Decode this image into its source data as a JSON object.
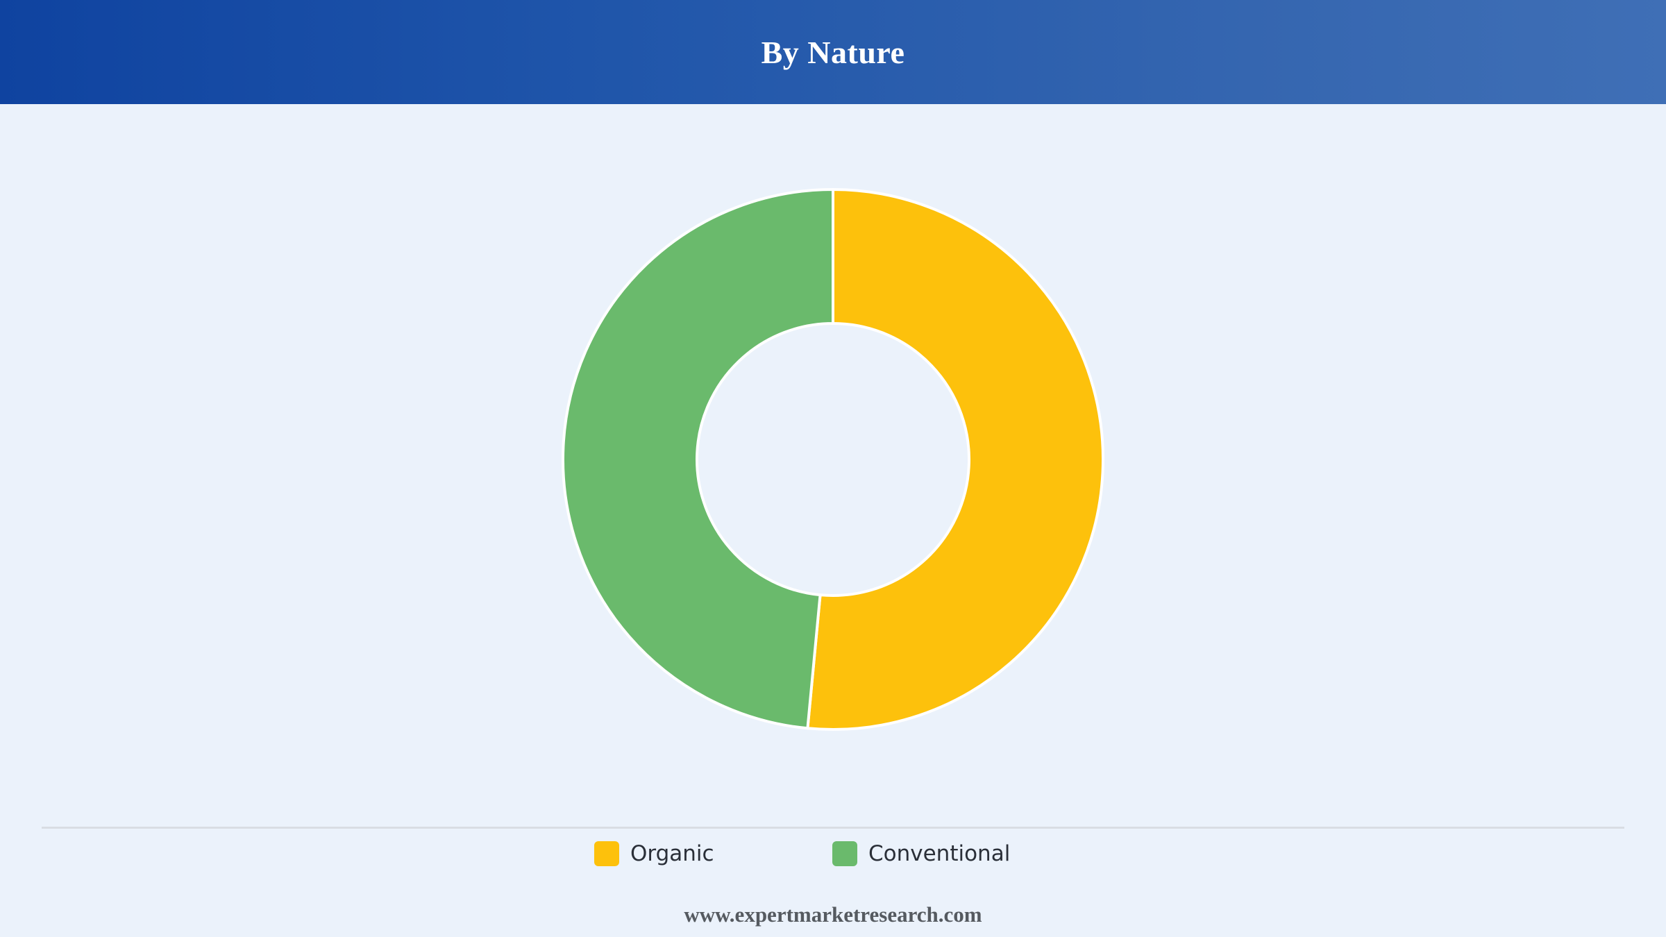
{
  "header": {
    "title": "By Nature"
  },
  "chart_data": {
    "type": "pie",
    "title": "By Nature",
    "donut": true,
    "categories": [
      "Organic",
      "Conventional"
    ],
    "values": [
      51.5,
      48.5
    ],
    "colors": [
      "#fdc10c",
      "#6aba6c"
    ],
    "legend_position": "bottom"
  },
  "footer": {
    "url": "www.expertmarketresearch.com"
  }
}
